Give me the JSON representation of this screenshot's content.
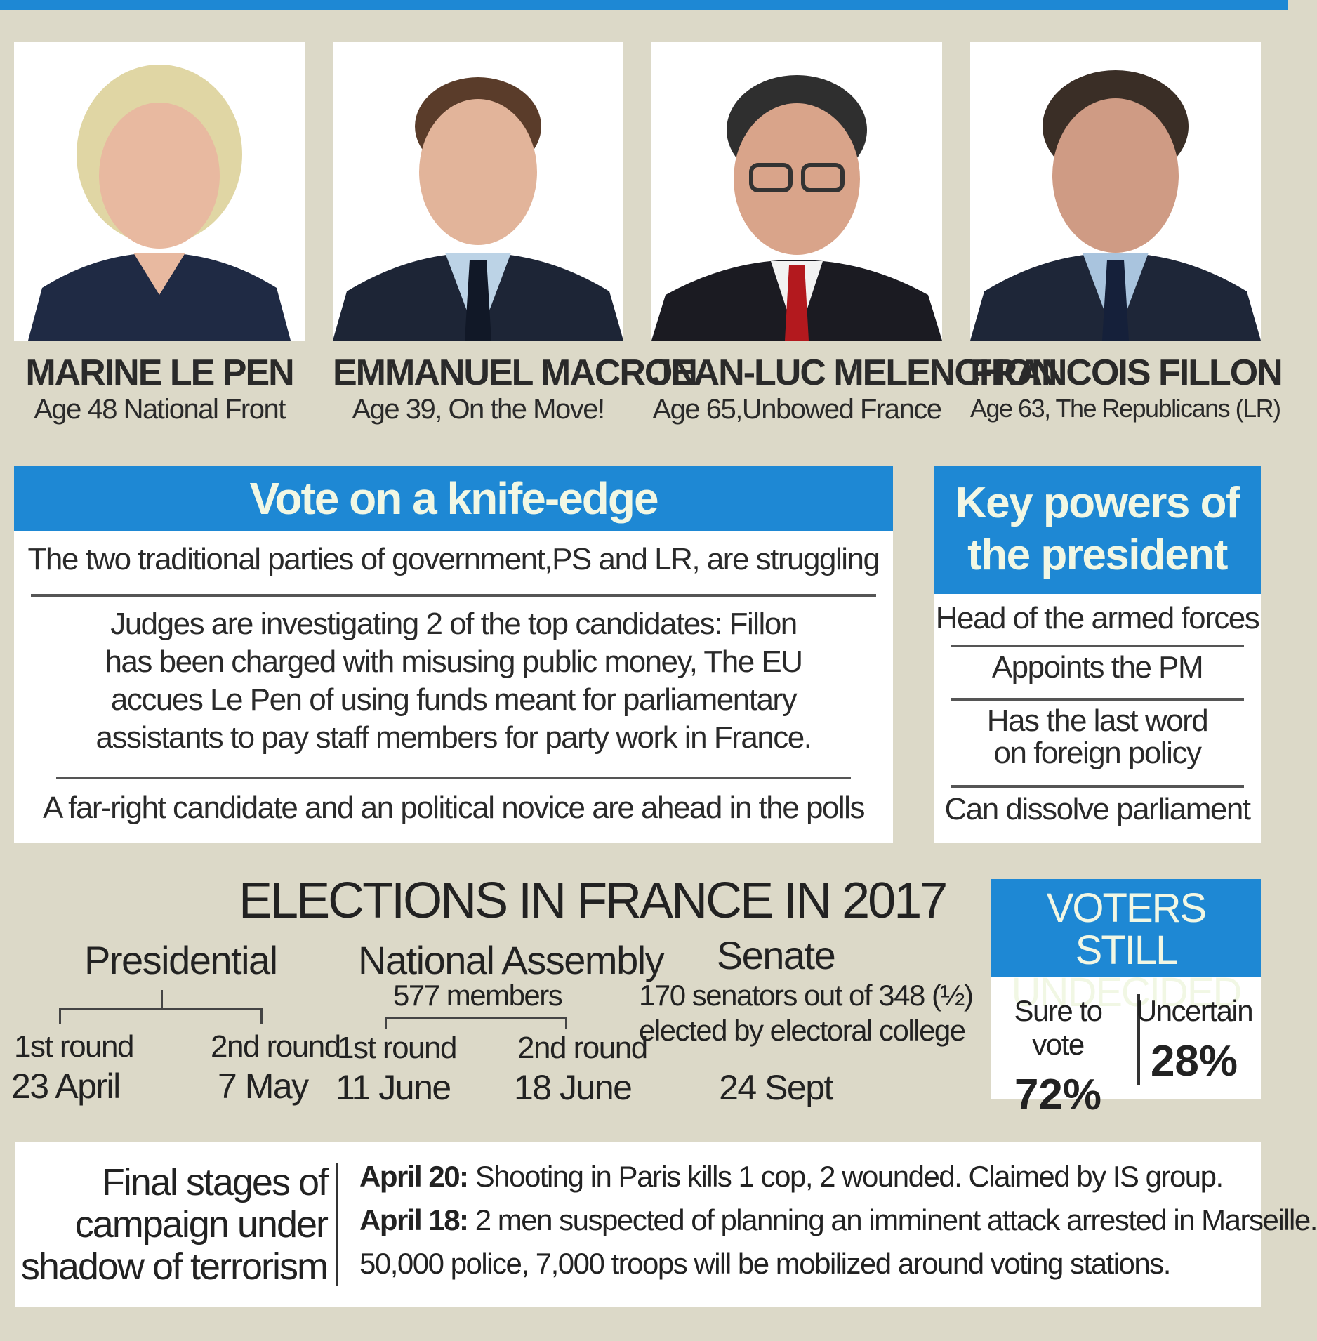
{
  "candidates": [
    {
      "name": "MARINE LE PEN",
      "details": "Age 48 National Front"
    },
    {
      "name": "EMMANUEL MACRON",
      "details": "Age 39, On the Move!"
    },
    {
      "name": "JEAN-LUC MELENCHON",
      "details": "Age 65,Unbowed France"
    },
    {
      "name": "FRANCOIS FILLON",
      "details": "Age 63, The Republicans (LR)"
    }
  ],
  "knife_edge": {
    "title": "Vote on a knife-edge",
    "items": [
      "The two traditional parties of government,PS and LR, are struggling",
      "Judges are investigating 2 of the top candidates: Fillon has been charged with misusing public money, The EU accues Le Pen of using funds meant for parliamentary assistants to pay staff members for party work in France.",
      "A far-right candidate and an political novice are ahead in the polls"
    ]
  },
  "key_powers": {
    "title": "Key powers of the president",
    "items": [
      "Head of the armed forces",
      "Appoints the PM",
      "Has the last word on foreign policy",
      "Can dissolve parliament"
    ]
  },
  "elections": {
    "title": "ELECTIONS IN FRANCE IN 2017",
    "presidential": {
      "label": "Presidential",
      "round1": {
        "label": "1st round",
        "date": "23 April"
      },
      "round2": {
        "label": "2nd round",
        "date": "7 May"
      }
    },
    "assembly": {
      "label": "National Assembly",
      "sub": "577 members",
      "round1": {
        "label": "1st round",
        "date": "11 June"
      },
      "round2": {
        "label": "2nd round",
        "date": "18 June"
      }
    },
    "senate": {
      "label": "Senate",
      "line1": "170 senators out of 348 (½)",
      "line2": "elected by electoral college",
      "date": "24 Sept"
    }
  },
  "voters": {
    "title": "VOTERS STILL UNDECIDED",
    "sure_label": "Sure to vote",
    "sure_value": "72%",
    "uncertain_label": "Uncertain",
    "uncertain_value": "28%"
  },
  "final_stages": {
    "label": "Final stages of campaign under shadow of terrorism",
    "events": [
      {
        "date": "April 20:",
        "text": "Shooting in Paris kills 1 cop, 2 wounded. Claimed by IS group."
      },
      {
        "date": "April 18:",
        "text": "2 men suspected of planning an imminent attack arrested in Marseille."
      },
      {
        "date": "",
        "text": "50,000 police, 7,000 troops will be mobilized around voting stations."
      }
    ]
  },
  "colors": {
    "accent": "#1e88d4",
    "background": "#dcd9c8"
  }
}
